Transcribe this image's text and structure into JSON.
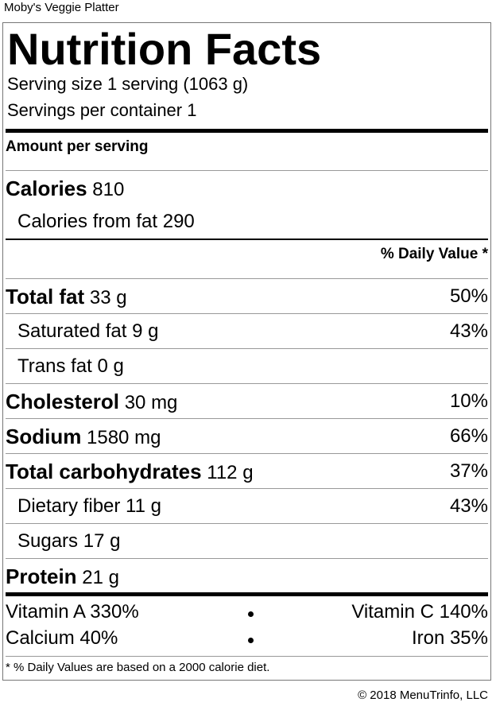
{
  "item_name": "Moby's Veggie Platter",
  "title": "Nutrition Facts",
  "serving_size": "Serving size 1 serving (1063 g)",
  "servings_per_container": "Servings per container 1",
  "amount_per_serving": "Amount per serving",
  "calories": {
    "label": "Calories",
    "value": "810"
  },
  "calories_from_fat": {
    "label": "Calories from fat",
    "value": "290"
  },
  "daily_value_header": "% Daily Value *",
  "nutrients": [
    {
      "label": "Total fat",
      "amount": "33 g",
      "dv": "50%",
      "bold": true
    },
    {
      "label": "Saturated fat",
      "amount": "9 g",
      "dv": "43%",
      "bold": false
    },
    {
      "label": "Trans fat",
      "amount": "0 g",
      "dv": "",
      "bold": false
    },
    {
      "label": "Cholesterol",
      "amount": "30 mg",
      "dv": "10%",
      "bold": true
    },
    {
      "label": "Sodium",
      "amount": "1580 mg",
      "dv": "66%",
      "bold": true
    },
    {
      "label": "Total carbohydrates",
      "amount": "112 g",
      "dv": "37%",
      "bold": true
    },
    {
      "label": "Dietary fiber",
      "amount": "11 g",
      "dv": "43%",
      "bold": false
    },
    {
      "label": "Sugars",
      "amount": "17 g",
      "dv": "",
      "bold": false
    },
    {
      "label": "Protein",
      "amount": "21 g",
      "dv": "",
      "bold": true
    }
  ],
  "vitamins": [
    {
      "left": "Vitamin A 330%",
      "right": "Vitamin C 140%"
    },
    {
      "left": "Calcium 40%",
      "right": "Iron 35%"
    }
  ],
  "footnote": "* % Daily Values are based on a 2000 calorie diet.",
  "copyright": "© 2018 MenuTrinfo, LLC"
}
